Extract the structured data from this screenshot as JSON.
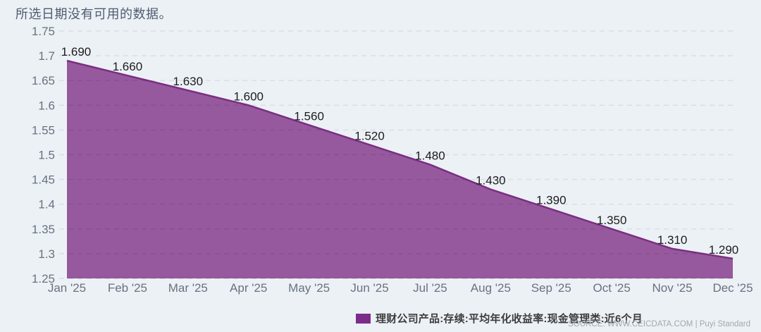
{
  "status_message": "所选日期没有可用的数据。",
  "legend": {
    "label": "理财公司产品:存续:平均年化收益率:现金管理类:近6个月",
    "swatch_color": "#7C2D8A"
  },
  "source": "SOURCE: WWW.CEICDATA.COM | Puyi Standard",
  "chart_data": {
    "type": "area",
    "title": "",
    "xlabel": "",
    "ylabel": "",
    "categories": [
      "Jan '25",
      "Feb '25",
      "Mar '25",
      "Apr '25",
      "May '25",
      "Jun '25",
      "Jul '25",
      "Aug '25",
      "Sep '25",
      "Oct '25",
      "Nov '25",
      "Dec '25"
    ],
    "series": [
      {
        "name": "理财公司产品:存续:平均年化收益率:现金管理类:近6个月",
        "values": [
          1.69,
          1.66,
          1.63,
          1.6,
          1.56,
          1.52,
          1.48,
          1.43,
          1.39,
          1.35,
          1.31,
          1.29
        ]
      }
    ],
    "data_labels": [
      "1.690",
      "1.660",
      "1.630",
      "1.600",
      "1.560",
      "1.520",
      "1.480",
      "1.430",
      "1.390",
      "1.350",
      "1.310",
      "1.290"
    ],
    "ylim": [
      1.25,
      1.75
    ],
    "yticks": [
      1.75,
      1.7,
      1.65,
      1.6,
      1.55,
      1.5,
      1.45,
      1.4,
      1.35,
      1.3,
      1.25
    ],
    "grid": "horizontal-dashed",
    "legend_position": "bottom",
    "colors": {
      "background": "#ECF1F6",
      "area_fill": "#96599D",
      "line": "#7A2E81",
      "grid": "#D9DDE4",
      "grid_over_area": "rgba(40,10,50,0.12)",
      "axis_text": "#68727F",
      "data_label_text": "#1C1C1C"
    }
  }
}
